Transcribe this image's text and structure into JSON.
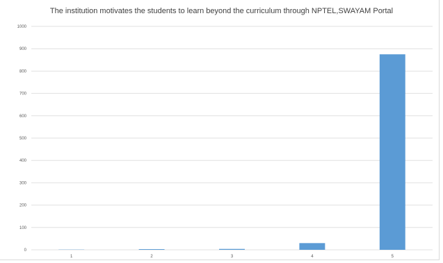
{
  "chart_data": {
    "type": "bar",
    "title": "The institution motivates the students to learn beyond the curriculum through NPTEL,SWAYAM Portal",
    "xlabel": "",
    "ylabel": "",
    "categories": [
      "1",
      "2",
      "3",
      "4",
      "5"
    ],
    "values": [
      1,
      3,
      4,
      30,
      875
    ],
    "ylim": [
      0,
      1000
    ],
    "yticks": [
      0,
      100,
      200,
      300,
      400,
      500,
      600,
      700,
      800,
      900,
      1000
    ],
    "grid": true,
    "legend": "none",
    "bar_color": "#5b9bd5",
    "grid_color": "#d9d9d9"
  }
}
